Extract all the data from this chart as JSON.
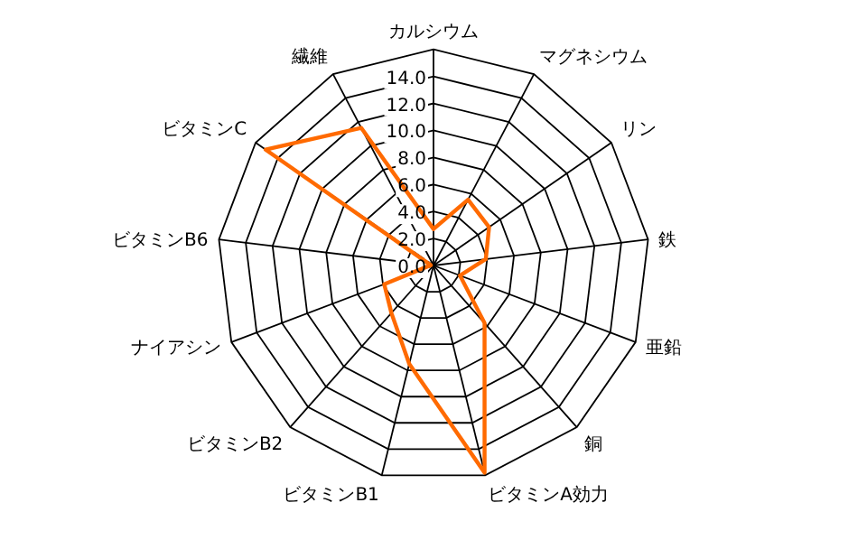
{
  "chart_data": {
    "type": "radar",
    "categories": [
      "カルシウム",
      "マグネシウム",
      "リン",
      "鉄",
      "亜鉛",
      "銅",
      "ビタミンA効力",
      "ビタミンB1",
      "ビタミンB2",
      "ナイアシン",
      "ビタミンB6",
      "ビタミンC",
      "繊維"
    ],
    "ylim": [
      0,
      16
    ],
    "yticks": [
      {
        "value": 0,
        "label": "0.0"
      },
      {
        "value": 2,
        "label": "2.0"
      },
      {
        "value": 4,
        "label": "4.0"
      },
      {
        "value": 6,
        "label": "6.0"
      },
      {
        "value": 8,
        "label": "8.0"
      },
      {
        "value": 10,
        "label": "10.0"
      },
      {
        "value": 12,
        "label": "12.0"
      },
      {
        "value": 14,
        "label": "14.0"
      }
    ],
    "grid": true,
    "series": [
      {
        "color": "#ff6a00",
        "values": [
          2.7,
          5.5,
          5.0,
          3.9,
          2.1,
          5.7,
          15.8,
          7.5,
          4.7,
          3.9,
          0.2,
          15.1,
          11.5
        ]
      }
    ]
  }
}
